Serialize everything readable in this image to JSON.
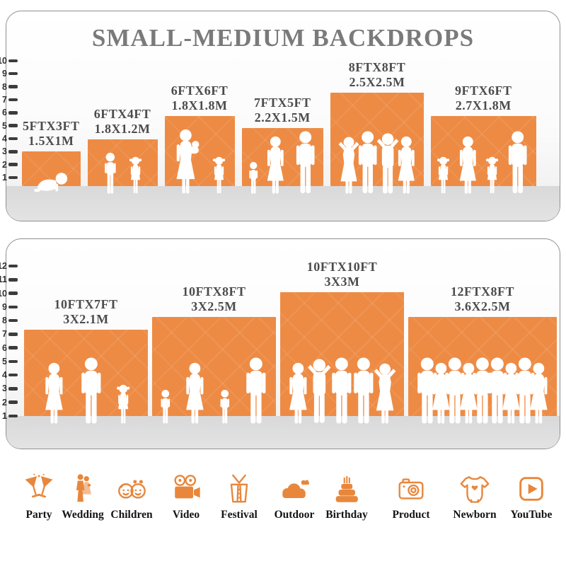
{
  "title": "SMALL-MEDIUM BACKDROPS",
  "colors": {
    "backdrop_orange": "#ED8B45",
    "icon_accent": "#E8873C",
    "title_gray": "#7A7A7A",
    "label_gray": "#4C4C4C",
    "ruler_dark": "#2F2F2F",
    "ground_gray": "#DEDEDE"
  },
  "panels": [
    {
      "name": "small-medium-backdrops-top",
      "ruler": [
        "10",
        "9",
        "8",
        "7",
        "6",
        "5",
        "4",
        "3",
        "2",
        "1"
      ],
      "backdrops": [
        {
          "size_ft_label": "5FTX3FT",
          "size_m_label": "1.5X1M",
          "width_ft": 5,
          "height_ft": 3,
          "figures": [
            "baby-crawl"
          ]
        },
        {
          "size_ft_label": "6FTX4FT",
          "size_m_label": "1.8X1.2M",
          "width_ft": 6,
          "height_ft": 4,
          "figures": [
            "boy",
            "girl"
          ]
        },
        {
          "size_ft_label": "6FTX6FT",
          "size_m_label": "1.8X1.8M",
          "width_ft": 6,
          "height_ft": 6,
          "figures": [
            "woman-baby",
            "girl"
          ]
        },
        {
          "size_ft_label": "7FTX5FT",
          "size_m_label": "2.2X1.5M",
          "width_ft": 7,
          "height_ft": 5,
          "figures": [
            "child",
            "woman",
            "man"
          ]
        },
        {
          "size_ft_label": "8FTX8FT",
          "size_m_label": "2.5X2.5M",
          "width_ft": 8,
          "height_ft": 8,
          "figures": [
            "woman-armsup",
            "man",
            "man-armsup",
            "woman"
          ]
        },
        {
          "size_ft_label": "9FTX6FT",
          "size_m_label": "2.7X1.8M",
          "width_ft": 9,
          "height_ft": 6,
          "figures": [
            "girl",
            "woman",
            "girl",
            "man"
          ]
        }
      ]
    },
    {
      "name": "small-medium-backdrops-bottom",
      "ruler": [
        "12",
        "11",
        "10",
        "9",
        "8",
        "7",
        "6",
        "5",
        "4",
        "3",
        "2",
        "1"
      ],
      "backdrops": [
        {
          "size_ft_label": "10FTX7FT",
          "size_m_label": "3X2.1M",
          "width_ft": 10,
          "height_ft": 7,
          "figures": [
            "woman",
            "man",
            "girl"
          ]
        },
        {
          "size_ft_label": "10FTX8FT",
          "size_m_label": "3X2.5M",
          "width_ft": 10,
          "height_ft": 8,
          "figures": [
            "child",
            "woman",
            "child",
            "man"
          ]
        },
        {
          "size_ft_label": "10FTX10FT",
          "size_m_label": "3X3M",
          "width_ft": 10,
          "height_ft": 10,
          "figures": [
            "woman",
            "man-armsup",
            "man",
            "man",
            "woman-armsup"
          ]
        },
        {
          "size_ft_label": "12FTX8FT",
          "size_m_label": "3.6X2.5M",
          "width_ft": 12,
          "height_ft": 8,
          "figures": [
            "man",
            "woman",
            "man",
            "woman",
            "man",
            "man",
            "woman",
            "man",
            "woman"
          ]
        }
      ]
    }
  ],
  "categories": [
    {
      "label": "Party",
      "icon": "party-icon"
    },
    {
      "label": "Wedding",
      "icon": "wedding-icon"
    },
    {
      "label": "Children",
      "icon": "children-icon"
    },
    {
      "label": "Video",
      "icon": "video-icon"
    },
    {
      "label": "Festival",
      "icon": "festival-icon"
    },
    {
      "label": "Outdoor",
      "icon": "outdoor-icon"
    },
    {
      "label": "Birthday",
      "icon": "birthday-icon"
    },
    {
      "label": "Product",
      "icon": "product-icon"
    },
    {
      "label": "Newborn",
      "icon": "newborn-icon"
    },
    {
      "label": "YouTube",
      "icon": "youtube-icon"
    }
  ]
}
